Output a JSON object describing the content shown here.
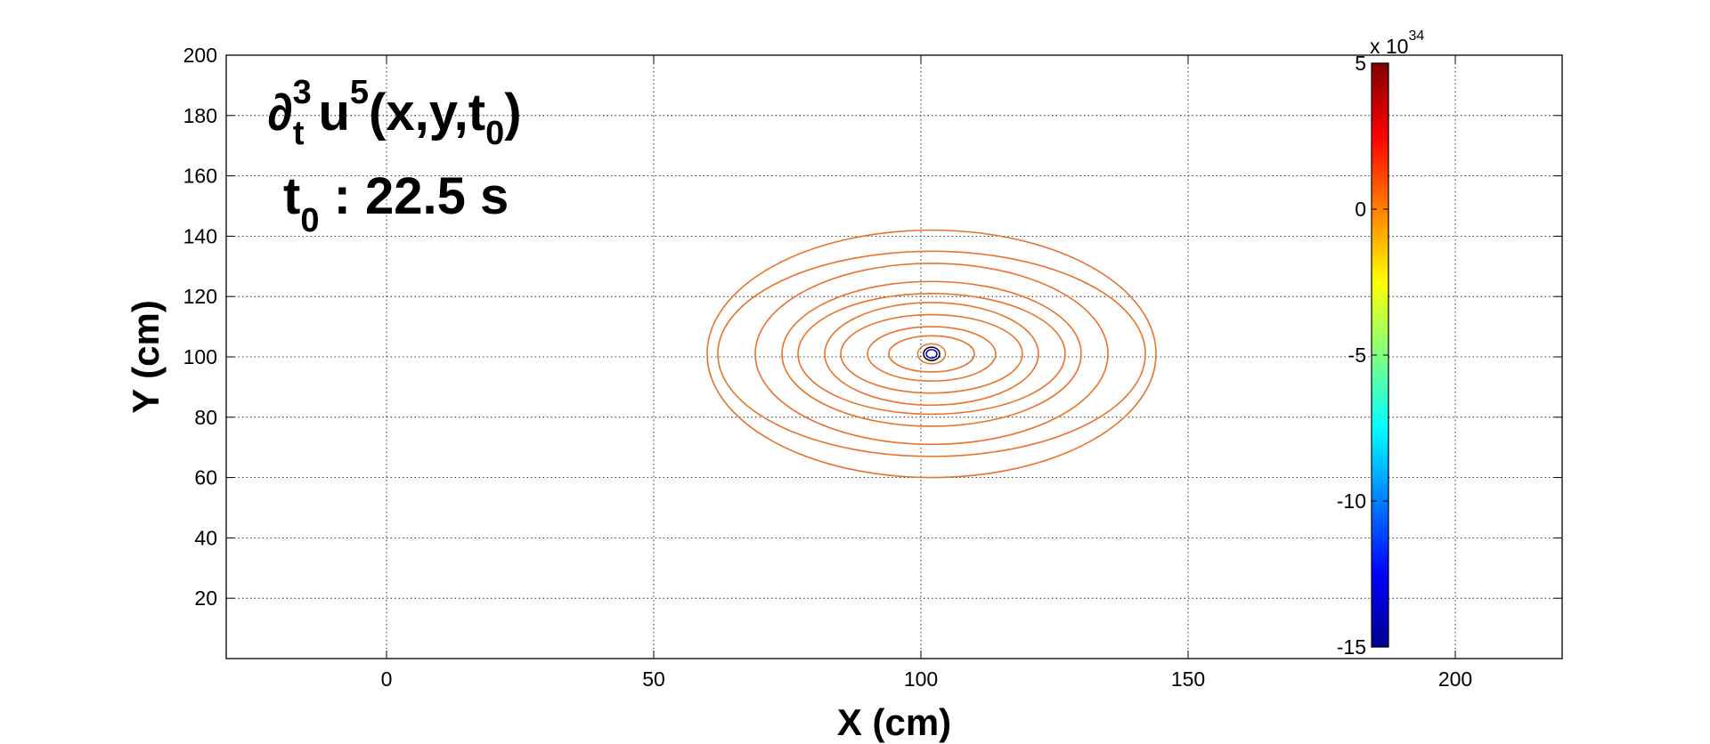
{
  "chart_data": {
    "type": "contour",
    "xlabel": "X (cm)",
    "ylabel": "Y (cm)",
    "xlim": [
      -30,
      220
    ],
    "ylim": [
      0,
      200
    ],
    "xticks": [
      0,
      50,
      100,
      150,
      200
    ],
    "yticks": [
      20,
      40,
      60,
      80,
      100,
      120,
      140,
      160,
      180,
      200
    ],
    "grid": true,
    "annotation": {
      "line1": {
        "operator": "∂",
        "op_sup": "3",
        "op_sub": "t",
        "func": "u",
        "func_sup": "5",
        "args_open": "(x,y,t",
        "args_sub": "0",
        "args_close": ")"
      },
      "line2": {
        "var": "t",
        "var_sub": "0",
        "text": " : 22.5 s"
      }
    },
    "contours": {
      "center": [
        102,
        101
      ],
      "color": "#E8732A",
      "ellipses": [
        {
          "rx": 42,
          "ry": 41
        },
        {
          "rx": 40,
          "ry": 34
        },
        {
          "rx": 33,
          "ry": 30
        },
        {
          "rx": 28,
          "ry": 24
        },
        {
          "rx": 25,
          "ry": 20
        },
        {
          "rx": 20,
          "ry": 17
        },
        {
          "rx": 17,
          "ry": 13
        },
        {
          "rx": 12,
          "ry": 9
        },
        {
          "rx": 8,
          "ry": 6
        }
      ],
      "core_rings": [
        {
          "rx": 1.5,
          "ry": 2.2,
          "color": "#000000"
        },
        {
          "rx": 2.6,
          "ry": 3.3,
          "color": "#E8732A"
        },
        {
          "rx": 1.0,
          "ry": 1.4,
          "color": "#0000cc"
        }
      ]
    },
    "colorbar": {
      "colormap": "jet",
      "range": [
        -15,
        5
      ],
      "ticks": [
        5,
        0,
        -5,
        -10,
        -15
      ],
      "tick_labels": [
        "5",
        "0",
        "-5",
        "-10",
        "-15"
      ],
      "multiplier_base": "x 10",
      "multiplier_exp": "34"
    }
  }
}
